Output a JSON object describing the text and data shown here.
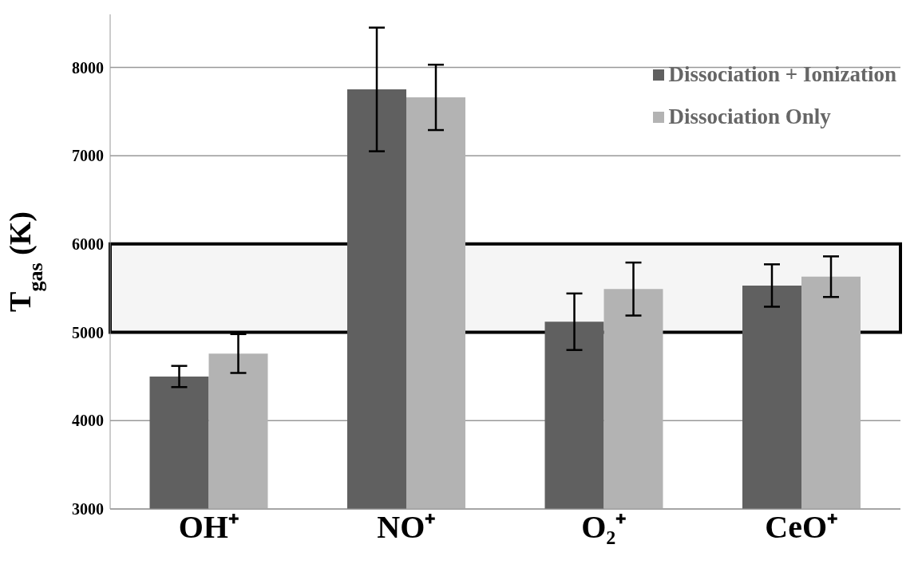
{
  "chart_data": {
    "type": "bar",
    "ylabel": "T$_{gas}$ (K)",
    "categories": [
      "OH⁺",
      "NO⁺",
      "O₂⁺",
      "CeO⁺"
    ],
    "series": [
      {
        "name": "Dissociation + Ionization",
        "color": "#606060",
        "values": [
          4500,
          7750,
          5120,
          5530
        ],
        "errors": [
          120,
          700,
          320,
          240
        ]
      },
      {
        "name": "Dissociation Only",
        "color": "#b3b3b3",
        "values": [
          4760,
          7660,
          5490,
          5630
        ],
        "errors": [
          220,
          370,
          300,
          230
        ]
      }
    ],
    "ylim": [
      3000,
      8600
    ],
    "yticks": [
      3000,
      4000,
      5000,
      6000,
      7000,
      8000
    ],
    "grid": "y",
    "legend": "top right",
    "bands": [
      {
        "axis": "y",
        "from": 5000,
        "to": 6000,
        "color": "#000000"
      }
    ]
  }
}
